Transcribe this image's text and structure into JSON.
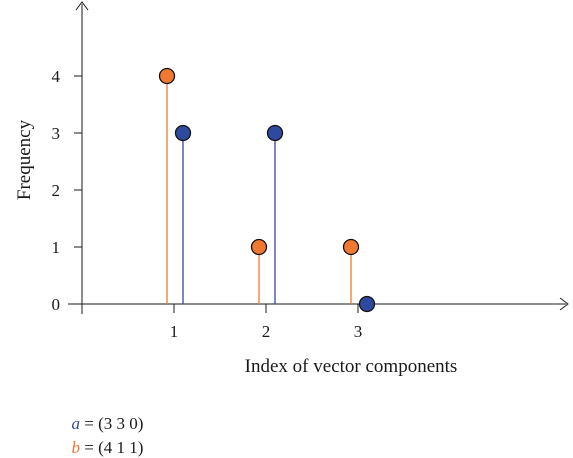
{
  "chart_data": {
    "type": "stem",
    "xlabel": "Index of vector components",
    "ylabel": "Frequency",
    "x_ticks": [
      "1",
      "2",
      "3"
    ],
    "y_ticks": [
      "0",
      "1",
      "2",
      "3",
      "4"
    ],
    "series": [
      {
        "name": "a",
        "x": [
          1,
          2,
          3
        ],
        "values": [
          3,
          3,
          0
        ],
        "color": "#2e4a9e"
      },
      {
        "name": "b",
        "x": [
          1,
          2,
          3
        ],
        "values": [
          4,
          1,
          1
        ],
        "color": "#f07830"
      }
    ]
  },
  "legend": {
    "a": {
      "symbol": "a",
      "text": " = (3 3 0)",
      "color": "#2e4a9e"
    },
    "b": {
      "symbol": "b",
      "text": " = (4 1 1)",
      "color": "#f07830"
    }
  }
}
